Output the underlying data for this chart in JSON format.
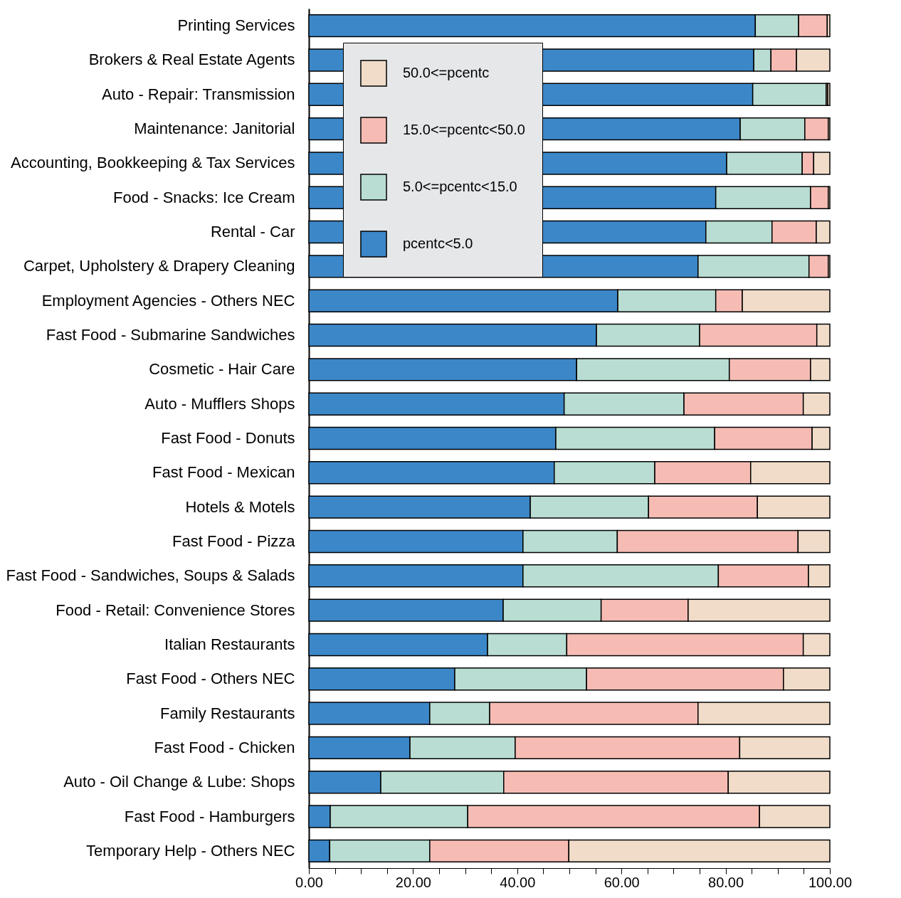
{
  "chart_data": {
    "type": "bar",
    "orientation": "horizontal",
    "stacked": true,
    "legend": "top left",
    "grid": false,
    "categories": [
      "Printing Services",
      "Brokers & Real Estate Agents",
      "Auto - Repair: Transmission",
      "Maintenance: Janitorial",
      "Accounting, Bookkeeping & Tax Services",
      "Food - Snacks: Ice Cream",
      "Rental - Car",
      "Carpet, Upholstery & Drapery Cleaning",
      "Employment Agencies - Others NEC",
      "Fast Food - Submarine Sandwiches",
      "Cosmetic - Hair Care",
      "Auto - Mufflers Shops",
      "Fast Food - Donuts",
      "Fast Food - Mexican",
      "Hotels & Motels",
      "Fast Food - Pizza",
      "Fast Food - Sandwiches, Soups & Salads",
      "Food - Retail: Convenience Stores",
      "Italian Restaurants",
      "Fast Food - Others NEC",
      "Family Restaurants",
      "Fast Food - Chicken",
      "Auto - Oil Change & Lube: Shops",
      "Fast Food - Hamburgers",
      "Temporary Help - Others NEC"
    ],
    "series": [
      {
        "name": "pcentc<5.0",
        "color": "#3c87c8",
        "values": [
          85.7,
          85.4,
          85.2,
          82.8,
          80.2,
          78.1,
          76.2,
          74.7,
          59.3,
          55.2,
          51.4,
          49.0,
          47.4,
          47.1,
          42.5,
          41.1,
          41.1,
          37.3,
          34.3,
          28.0,
          23.2,
          19.4,
          13.8,
          4.1,
          4.0
        ]
      },
      {
        "name": "5.0<=pcentc<15.0",
        "color": "#b9ddd3",
        "values": [
          8.3,
          3.3,
          14.1,
          12.4,
          14.5,
          18.2,
          12.7,
          21.3,
          18.8,
          19.8,
          29.3,
          23.0,
          30.5,
          19.3,
          22.7,
          18.1,
          37.5,
          18.8,
          15.2,
          25.3,
          11.5,
          20.2,
          23.6,
          26.4,
          19.2
        ]
      },
      {
        "name": "15.0<=pcentc<50.0",
        "color": "#f6bcb4",
        "values": [
          5.5,
          4.9,
          0.3,
          4.5,
          2.2,
          3.4,
          8.5,
          3.7,
          5.1,
          22.5,
          15.6,
          22.9,
          18.7,
          18.4,
          20.9,
          34.7,
          17.3,
          16.7,
          45.4,
          37.8,
          40.0,
          43.1,
          43.1,
          56.0,
          26.7
        ]
      },
      {
        "name": "50.0<=pcentc",
        "color": "#f0dcc8",
        "values": [
          0.5,
          6.4,
          0.4,
          0.3,
          3.1,
          0.3,
          2.6,
          0.3,
          16.8,
          2.5,
          3.7,
          5.1,
          3.4,
          15.2,
          13.9,
          6.1,
          4.1,
          27.2,
          5.1,
          8.9,
          25.3,
          17.3,
          19.5,
          13.5,
          50.1
        ]
      }
    ],
    "xlim": [
      0,
      100
    ],
    "xticks": [
      {
        "value": 0,
        "label": "0.00"
      },
      {
        "value": 5,
        "label": null
      },
      {
        "value": 10,
        "label": null
      },
      {
        "value": 15,
        "label": null
      },
      {
        "value": 20,
        "label": "20.00"
      },
      {
        "value": 25,
        "label": null
      },
      {
        "value": 30,
        "label": null
      },
      {
        "value": 35,
        "label": null
      },
      {
        "value": 40,
        "label": "40.00"
      },
      {
        "value": 45,
        "label": null
      },
      {
        "value": 50,
        "label": null
      },
      {
        "value": 55,
        "label": null
      },
      {
        "value": 60,
        "label": "60.00"
      },
      {
        "value": 65,
        "label": null
      },
      {
        "value": 70,
        "label": null
      },
      {
        "value": 75,
        "label": null
      },
      {
        "value": 80,
        "label": "80.00"
      },
      {
        "value": 85,
        "label": null
      },
      {
        "value": 90,
        "label": null
      },
      {
        "value": 95,
        "label": null
      },
      {
        "value": 100,
        "label": "100.00"
      }
    ]
  }
}
